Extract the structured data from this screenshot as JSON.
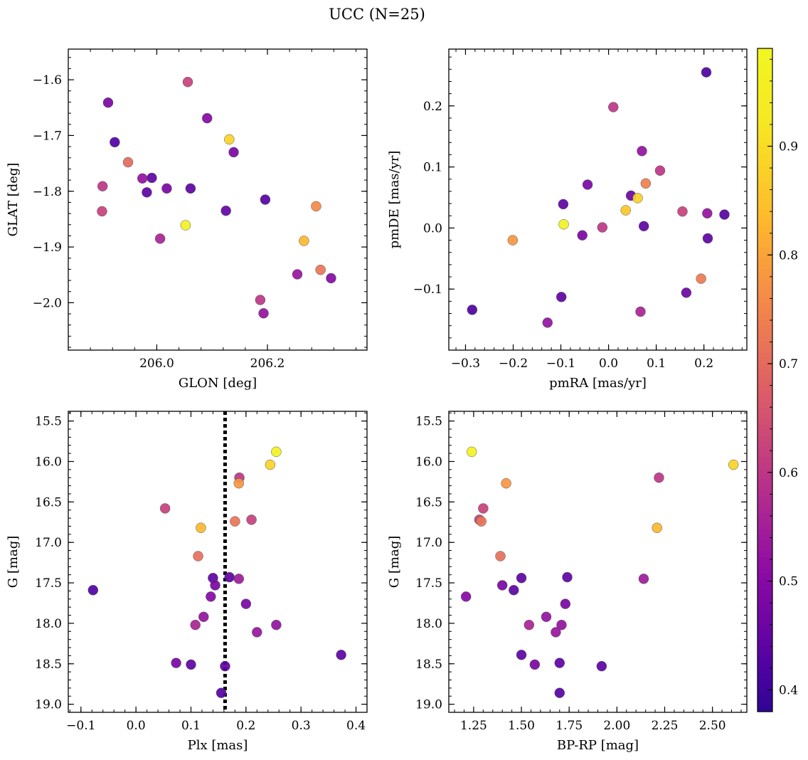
{
  "figure": {
    "title": "UCC (N=25)"
  },
  "colorbar": {
    "vmin": 0.38,
    "vmax": 0.99,
    "ticks": [
      0.4,
      0.5,
      0.6,
      0.7,
      0.8,
      0.9
    ],
    "tick_labels": [
      "0.4",
      "0.5",
      "0.6",
      "0.7",
      "0.8",
      "0.9"
    ],
    "colormap": "plasma"
  },
  "chart_data": [
    {
      "type": "scatter",
      "id": "glon-glat",
      "title": "",
      "xlabel": "GLON [deg]",
      "ylabel": "GLAT [deg]",
      "xlim": [
        205.84,
        206.38
      ],
      "ylim": [
        -2.085,
        -1.545
      ],
      "xticks": [
        206.0,
        206.2
      ],
      "xtick_labels": [
        "206.0",
        "206.2"
      ],
      "yticks": [
        -1.6,
        -1.7,
        -1.8,
        -1.9,
        -2.0
      ],
      "ytick_labels": [
        "−1.6",
        "−1.7",
        "−1.8",
        "−1.9",
        "−2.0"
      ],
      "x": [
        206.056,
        205.912,
        205.924,
        205.948,
        205.902,
        205.901,
        205.974,
        205.991,
        205.982,
        206.018,
        206.061,
        206.006,
        206.052,
        206.091,
        206.131,
        206.139,
        206.125,
        206.196,
        206.288,
        206.266,
        206.254,
        206.296,
        206.315,
        206.187,
        206.193
      ],
      "y": [
        -1.604,
        -1.641,
        -1.712,
        -1.748,
        -1.791,
        -1.836,
        -1.777,
        -1.776,
        -1.802,
        -1.795,
        -1.795,
        -1.885,
        -1.861,
        -1.669,
        -1.707,
        -1.73,
        -1.835,
        -1.815,
        -1.827,
        -1.889,
        -1.949,
        -1.941,
        -1.956,
        -1.995,
        -2.019
      ],
      "c": [
        0.62,
        0.48,
        0.42,
        0.7,
        0.6,
        0.62,
        0.52,
        0.44,
        0.44,
        0.48,
        0.44,
        0.56,
        0.97,
        0.5,
        0.88,
        0.48,
        0.45,
        0.43,
        0.76,
        0.83,
        0.53,
        0.72,
        0.5,
        0.6,
        0.52
      ]
    },
    {
      "type": "scatter",
      "id": "pmra-pmde",
      "title": "",
      "xlabel": "pmRA [mas/yr]",
      "ylabel": "pmDE [mas/yr]",
      "xlim": [
        -0.335,
        0.29
      ],
      "ylim": [
        -0.2,
        0.293
      ],
      "xticks": [
        -0.3,
        -0.2,
        -0.1,
        0.0,
        0.1,
        0.2
      ],
      "xtick_labels": [
        "−0.3",
        "−0.2",
        "−0.1",
        "0.0",
        "0.1",
        "0.2"
      ],
      "yticks": [
        0.2,
        0.1,
        0.0,
        -0.1
      ],
      "ytick_labels": [
        "0.2",
        "0.1",
        "0.0",
        "−0.1"
      ],
      "x": [
        0.205,
        0.01,
        0.07,
        0.108,
        -0.044,
        0.078,
        0.047,
        0.061,
        -0.095,
        0.036,
        0.155,
        0.207,
        0.243,
        -0.094,
        0.074,
        -0.055,
        -0.013,
        0.208,
        -0.201,
        0.194,
        0.163,
        -0.099,
        0.067,
        -0.286,
        -0.128
      ],
      "y": [
        0.255,
        0.198,
        0.126,
        0.094,
        0.071,
        0.073,
        0.053,
        0.049,
        0.039,
        0.029,
        0.027,
        0.024,
        0.022,
        0.006,
        0.003,
        -0.012,
        0.001,
        -0.017,
        -0.02,
        -0.083,
        -0.106,
        -0.113,
        -0.137,
        -0.134,
        -0.155
      ],
      "c": [
        0.42,
        0.6,
        0.52,
        0.6,
        0.48,
        0.74,
        0.46,
        0.88,
        0.44,
        0.86,
        0.62,
        0.52,
        0.43,
        0.97,
        0.44,
        0.48,
        0.6,
        0.44,
        0.78,
        0.73,
        0.46,
        0.44,
        0.56,
        0.42,
        0.52
      ]
    },
    {
      "type": "scatter",
      "id": "plx-g",
      "title": "",
      "xlabel": "Plx [mas]",
      "ylabel": "G [mag]",
      "xlim": [
        -0.123,
        0.42
      ],
      "ylim": [
        19.1,
        15.38
      ],
      "xticks": [
        -0.1,
        0.0,
        0.1,
        0.2,
        0.3,
        0.4
      ],
      "xtick_labels": [
        "−0.1",
        "0.0",
        "0.1",
        "0.2",
        "0.3",
        "0.4"
      ],
      "yticks": [
        15.5,
        16.0,
        16.5,
        17.0,
        17.5,
        18.0,
        18.5,
        19.0
      ],
      "ytick_labels": [
        "15.5",
        "16.0",
        "16.5",
        "17.0",
        "17.5",
        "18.0",
        "18.5",
        "19.0"
      ],
      "vline": {
        "x": 0.162
      },
      "x": [
        0.255,
        0.244,
        0.188,
        0.187,
        0.053,
        0.21,
        0.18,
        0.118,
        0.113,
        0.14,
        0.187,
        0.17,
        0.144,
        0.136,
        -0.078,
        0.2,
        0.123,
        0.108,
        0.22,
        0.255,
        0.373,
        0.073,
        0.1,
        0.162,
        0.155
      ],
      "y": [
        15.88,
        16.04,
        16.2,
        16.27,
        16.58,
        16.72,
        16.74,
        16.82,
        17.17,
        17.44,
        17.45,
        17.43,
        17.53,
        17.67,
        17.59,
        17.76,
        17.92,
        18.02,
        18.11,
        18.02,
        18.39,
        18.49,
        18.51,
        18.53,
        18.86
      ],
      "c": [
        0.97,
        0.88,
        0.6,
        0.78,
        0.62,
        0.62,
        0.72,
        0.83,
        0.71,
        0.44,
        0.54,
        0.44,
        0.48,
        0.5,
        0.42,
        0.48,
        0.52,
        0.56,
        0.53,
        0.52,
        0.44,
        0.48,
        0.44,
        0.44,
        0.43
      ]
    },
    {
      "type": "scatter",
      "id": "bprp-g",
      "title": "",
      "xlabel": "BP-RP [mag]",
      "ylabel": "G [mag]",
      "xlim": [
        1.12,
        2.68
      ],
      "ylim": [
        19.1,
        15.38
      ],
      "xticks": [
        1.25,
        1.5,
        1.75,
        2.0,
        2.25,
        2.5
      ],
      "xtick_labels": [
        "1.25",
        "1.50",
        "1.75",
        "2.00",
        "2.25",
        "2.50"
      ],
      "yticks": [
        15.5,
        16.0,
        16.5,
        17.0,
        17.5,
        18.0,
        18.5,
        19.0
      ],
      "ytick_labels": [
        "15.5",
        "16.0",
        "16.5",
        "17.0",
        "17.5",
        "18.0",
        "18.5",
        "19.0"
      ],
      "x": [
        1.24,
        2.61,
        2.22,
        1.42,
        1.3,
        1.28,
        1.29,
        2.21,
        1.39,
        1.5,
        1.74,
        2.14,
        1.4,
        1.46,
        1.21,
        1.73,
        1.63,
        1.54,
        1.68,
        1.71,
        1.5,
        1.57,
        1.7,
        1.92,
        1.7
      ],
      "y": [
        15.88,
        16.04,
        16.2,
        16.27,
        16.58,
        16.72,
        16.74,
        16.82,
        17.17,
        17.44,
        17.43,
        17.45,
        17.53,
        17.59,
        17.67,
        17.76,
        17.92,
        18.02,
        18.11,
        18.02,
        18.39,
        18.51,
        18.49,
        18.53,
        18.86
      ],
      "c": [
        0.97,
        0.88,
        0.6,
        0.78,
        0.62,
        0.62,
        0.72,
        0.83,
        0.71,
        0.44,
        0.44,
        0.54,
        0.48,
        0.44,
        0.5,
        0.48,
        0.52,
        0.56,
        0.53,
        0.52,
        0.44,
        0.48,
        0.44,
        0.44,
        0.43
      ]
    }
  ]
}
